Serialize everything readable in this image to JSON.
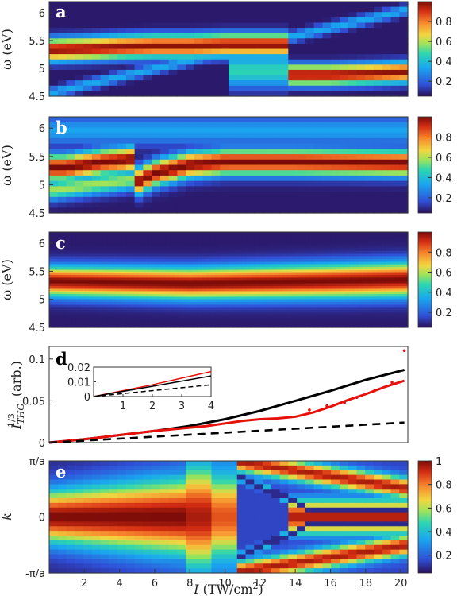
{
  "colors": {
    "line_black": "#000000",
    "line_red": "#e8100a",
    "marker_red": "#e8100a"
  },
  "chart_data": [
    {
      "panel": "a",
      "type": "heatmap",
      "colormap": "jet",
      "ylabel": "ω (eV)",
      "xlim": [
        0,
        20.4
      ],
      "ylim": [
        4.5,
        6.2
      ],
      "yticks": [
        4.5,
        5,
        5.5,
        6
      ],
      "ytick_labels": [
        "4.5",
        "5",
        "5.5",
        "6"
      ],
      "colorbar": {
        "range": [
          0.05,
          1.0
        ],
        "ticks": [
          "0.2",
          "0.4",
          "0.6",
          "0.8"
        ]
      },
      "bands": [
        {
          "name_hidden": "upper",
          "x": [
            0,
            2,
            4,
            6,
            8,
            10,
            12,
            13.3,
            13.7
          ],
          "center": [
            5.33,
            5.35,
            5.38,
            5.4,
            5.4,
            5.42,
            5.42,
            5.42,
            5.42
          ],
          "width": 0.2,
          "amp": 1.0
        },
        {
          "name_hidden": "lower",
          "x": [
            13.3,
            13.7,
            16,
            18,
            20.4
          ],
          "center": [
            4.9,
            4.88,
            4.88,
            4.9,
            4.93
          ],
          "width": 0.18,
          "amp": 1.0
        }
      ],
      "x_bins": 42,
      "y_bins": 18
    },
    {
      "panel": "b",
      "type": "heatmap",
      "colormap": "jet",
      "ylabel": "ω (eV)",
      "xlim": [
        0,
        20.4
      ],
      "ylim": [
        4.5,
        6.2
      ],
      "yticks": [
        4.5,
        5,
        5.5,
        6
      ],
      "ytick_labels": [
        "4.5",
        "5",
        "5.5",
        "6"
      ],
      "colorbar": {
        "range": [
          0.05,
          1.0
        ],
        "ticks": [
          "0.2",
          "0.4",
          "0.6",
          "0.8"
        ]
      },
      "bands": [
        {
          "x": [
            0,
            1,
            2,
            3,
            4,
            4.7,
            5,
            6,
            8,
            10,
            14,
            20.4
          ],
          "center": [
            5.3,
            5.3,
            5.35,
            5.4,
            5.42,
            5.45,
            5.05,
            5.2,
            5.35,
            5.4,
            5.4,
            5.38
          ],
          "width": 0.22,
          "amp": 1.0
        }
      ],
      "x_bins": 42,
      "y_bins": 18
    },
    {
      "panel": "c",
      "type": "heatmap",
      "colormap": "jet",
      "ylabel": "ω (eV)",
      "xlim": [
        0,
        20.4
      ],
      "ylim": [
        4.5,
        6.2
      ],
      "yticks": [
        4.5,
        5,
        5.5,
        6
      ],
      "ytick_labels": [
        "4.5",
        "5",
        "5.5",
        "6"
      ],
      "colorbar": {
        "range": [
          0.05,
          1.0
        ],
        "ticks": [
          "0.2",
          "0.4",
          "0.6",
          "0.8"
        ]
      },
      "bands": [
        {
          "x": [
            0,
            4,
            8,
            12,
            16,
            20.4
          ],
          "center": [
            5.32,
            5.3,
            5.28,
            5.3,
            5.32,
            5.35
          ],
          "width": 0.26,
          "amp": 1.0
        }
      ],
      "x_bins": 80,
      "y_bins": 60
    },
    {
      "panel": "d",
      "type": "line",
      "ylabel": "I_THG^(1/3) (arb.)",
      "xlim": [
        0,
        20.4
      ],
      "ylim": [
        0,
        0.115
      ],
      "yticks": [
        0,
        0.05,
        0.1
      ],
      "ytick_labels": [
        "0",
        "0.05",
        "0.1"
      ],
      "series": [
        {
          "style": "solid-black",
          "x": [
            0,
            2,
            4,
            6,
            8,
            10,
            12,
            14,
            16,
            18,
            20.2
          ],
          "y": [
            0,
            0.004,
            0.009,
            0.014,
            0.02,
            0.028,
            0.038,
            0.05,
            0.062,
            0.075,
            0.087
          ]
        },
        {
          "style": "solid-red",
          "x": [
            0,
            2,
            4,
            6,
            8,
            9,
            10,
            11,
            12,
            13,
            14,
            15,
            16,
            17,
            18,
            19,
            20.2
          ],
          "y": [
            0,
            0.004,
            0.009,
            0.014,
            0.018,
            0.02,
            0.023,
            0.026,
            0.028,
            0.029,
            0.031,
            0.036,
            0.043,
            0.051,
            0.058,
            0.066,
            0.074
          ]
        },
        {
          "style": "dashed-black",
          "x": [
            0,
            20.2
          ],
          "y": [
            0,
            0.024
          ]
        },
        {
          "style": "dots-red",
          "x": [
            14.8,
            15.8,
            16.8,
            17.5,
            18.5,
            19.5,
            20.2
          ],
          "y": [
            0.039,
            0.044,
            0.048,
            0.054,
            0.062,
            0.072,
            0.11
          ]
        }
      ],
      "inset": {
        "xlim": [
          0,
          4
        ],
        "ylim": [
          0,
          0.02
        ],
        "xticks": [
          1,
          2,
          3,
          4
        ],
        "xtick_labels": [
          "1",
          "2",
          "3",
          "4"
        ],
        "yticks": [
          0,
          0.01,
          0.02
        ],
        "ytick_labels": [
          "0",
          "0.01",
          "0.02"
        ],
        "series": [
          {
            "style": "solid-red",
            "x": [
              0,
              1,
              2,
              3,
              4
            ],
            "y": [
              0,
              0.004,
              0.008,
              0.0125,
              0.017
            ]
          },
          {
            "style": "solid-black",
            "x": [
              0,
              1,
              2,
              3,
              4
            ],
            "y": [
              0,
              0.0035,
              0.007,
              0.0105,
              0.014
            ]
          },
          {
            "style": "dashed-black",
            "x": [
              0,
              4
            ],
            "y": [
              0,
              0.008
            ]
          }
        ]
      }
    },
    {
      "panel": "e",
      "type": "heatmap",
      "colormap": "jet",
      "ylabel": "k",
      "xlabel": "I (TW/cm²)",
      "xlim": [
        0,
        20.4
      ],
      "ylim": [
        -1,
        1
      ],
      "xticks": [
        2,
        4,
        6,
        8,
        10,
        12,
        14,
        16,
        18,
        20
      ],
      "xtick_labels": [
        "2",
        "4",
        "6",
        "8",
        "10",
        "12",
        "14",
        "16",
        "18",
        "20"
      ],
      "yticks": [
        -1,
        0,
        1
      ],
      "ytick_labels": [
        "-π/a",
        "0",
        "π/a"
      ],
      "colorbar": {
        "range": [
          0.05,
          1.0
        ],
        "ticks": [
          "0.2",
          "0.4",
          "0.6",
          "0.8",
          "1"
        ]
      },
      "x_bins": 42,
      "y_bins": 24
    }
  ]
}
